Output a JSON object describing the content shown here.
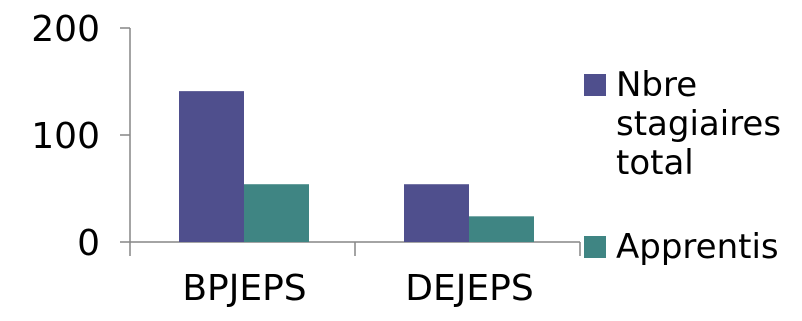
{
  "chart_data": {
    "type": "bar",
    "categories": [
      "BPJEPS",
      "DEJEPS"
    ],
    "series": [
      {
        "name": "Nbre stagiaires total",
        "values": [
          141,
          54
        ],
        "color": "#4f4f8d"
      },
      {
        "name": "Apprentis",
        "values": [
          54,
          24
        ],
        "color": "#3f8583"
      }
    ],
    "legend_lines": [
      [
        "Nbre",
        "stagiaires",
        "total"
      ],
      [
        "Apprentis"
      ]
    ],
    "yticks": [
      "200",
      "100",
      "0"
    ],
    "ylim": [
      0,
      200
    ],
    "grid": false,
    "legend": "right",
    "title": "",
    "xlabel": "",
    "ylabel": ""
  }
}
